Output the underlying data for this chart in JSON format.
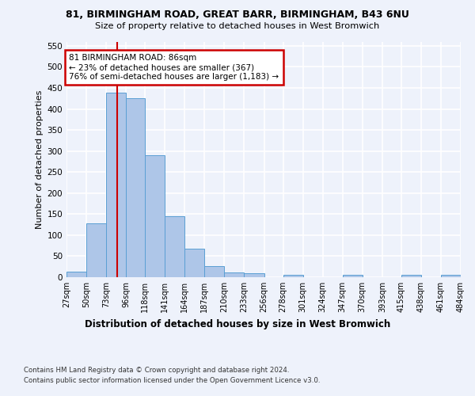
{
  "title_line1": "81, BIRMINGHAM ROAD, GREAT BARR, BIRMINGHAM, B43 6NU",
  "title_line2": "Size of property relative to detached houses in West Bromwich",
  "xlabel": "Distribution of detached houses by size in West Bromwich",
  "ylabel": "Number of detached properties",
  "bar_edges": [
    27,
    50,
    73,
    96,
    118,
    141,
    164,
    187,
    210,
    233,
    256,
    278,
    301,
    324,
    347,
    370,
    393,
    415,
    438,
    461,
    484
  ],
  "bar_heights": [
    13,
    128,
    438,
    425,
    290,
    145,
    68,
    27,
    11,
    9,
    0,
    5,
    0,
    0,
    5,
    0,
    0,
    5,
    0,
    6,
    0
  ],
  "bar_color": "#aec6e8",
  "bar_edgecolor": "#5a9fd4",
  "ylim": [
    0,
    560
  ],
  "yticks": [
    0,
    50,
    100,
    150,
    200,
    250,
    300,
    350,
    400,
    450,
    500,
    550
  ],
  "property_line_x": 86,
  "annotation_text": "81 BIRMINGHAM ROAD: 86sqm\n← 23% of detached houses are smaller (367)\n76% of semi-detached houses are larger (1,183) →",
  "annotation_box_color": "#ffffff",
  "annotation_box_edgecolor": "#cc0000",
  "vline_color": "#cc0000",
  "footer_line1": "Contains HM Land Registry data © Crown copyright and database right 2024.",
  "footer_line2": "Contains public sector information licensed under the Open Government Licence v3.0.",
  "background_color": "#eef2fb",
  "plot_background": "#eef2fb"
}
